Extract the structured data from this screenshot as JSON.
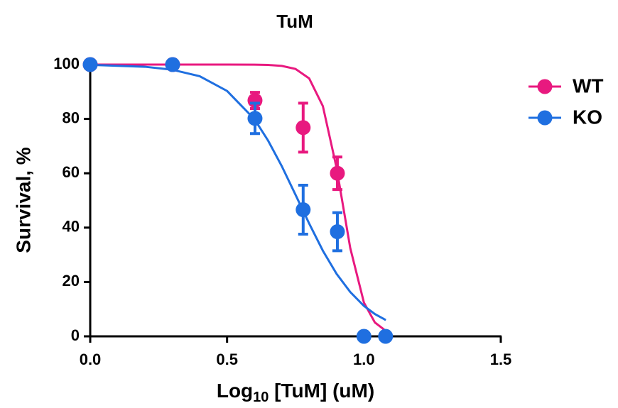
{
  "chart_data": {
    "type": "scatter",
    "title": "TuM",
    "xlabel": {
      "main": "Log",
      "sub": "10",
      "rest": " [TuM] (uM)"
    },
    "ylabel": "Survival, %",
    "xlim": [
      0,
      1.5
    ],
    "ylim": [
      0,
      100
    ],
    "xticks": [
      {
        "value": 0,
        "label": "0.0"
      },
      {
        "value": 0.5,
        "label": "0.5"
      },
      {
        "value": 1,
        "label": "1.0"
      },
      {
        "value": 1.5,
        "label": "1.5"
      }
    ],
    "yticks": [
      0,
      20,
      40,
      60,
      80,
      100
    ],
    "legend": "right",
    "series": [
      {
        "name": "WT",
        "color": "#e8197f",
        "x": [
          0,
          0.301,
          0.602,
          0.778,
          0.903
        ],
        "values": [
          100,
          100,
          86.8,
          76.8,
          60
        ],
        "errors": [
          null,
          null,
          3,
          9,
          6
        ],
        "curve": {
          "x": [
            0,
            0.2,
            0.4,
            0.5,
            0.6,
            0.65,
            0.7,
            0.75,
            0.8,
            0.85,
            0.9,
            0.95,
            1.0,
            1.04,
            1.08
          ],
          "y": [
            100,
            100,
            100,
            100,
            99.96,
            99.86,
            99.5,
            98.4,
            94.9,
            84.7,
            62.0,
            32.5,
            12.4,
            5.1,
            2.0
          ]
        }
      },
      {
        "name": "KO",
        "color": "#1f6fe0",
        "x": [
          0,
          0.301,
          0.602,
          0.778,
          0.903,
          1.0,
          1.079
        ],
        "values": [
          100,
          100,
          80.2,
          46.6,
          38.5,
          0,
          0
        ],
        "errors": [
          null,
          null,
          5.6,
          9,
          7,
          null,
          null
        ],
        "curve": {
          "x": [
            0,
            0.2,
            0.3,
            0.4,
            0.5,
            0.6,
            0.65,
            0.7,
            0.75,
            0.8,
            0.85,
            0.9,
            0.95,
            1.0,
            1.04,
            1.08
          ],
          "y": [
            99.9,
            99.2,
            98.1,
            95.7,
            90.3,
            79.9,
            72.0,
            62.6,
            52.1,
            41.5,
            31.5,
            23.0,
            16.3,
            11.2,
            8.2,
            6.0
          ]
        }
      }
    ]
  }
}
